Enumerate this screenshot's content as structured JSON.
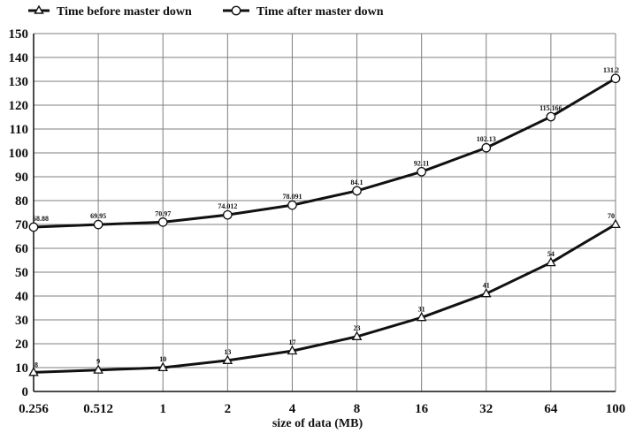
{
  "chart_data": {
    "type": "line",
    "title": "",
    "xlabel": "size of data (MB)",
    "ylabel": "",
    "categories": [
      "0.256",
      "0.512",
      "1",
      "2",
      "4",
      "8",
      "16",
      "32",
      "64",
      "100"
    ],
    "ylim": [
      0,
      150
    ],
    "y_ticks": [
      "0",
      "10",
      "20",
      "30",
      "40",
      "50",
      "60",
      "70",
      "80",
      "90",
      "100",
      "110",
      "120",
      "130",
      "140",
      "150"
    ],
    "grid": true,
    "legend_position": "top-left",
    "series": [
      {
        "name": "Time before master down",
        "marker": "triangle",
        "values": [
          8,
          9,
          10,
          13,
          17,
          23,
          31,
          41,
          54,
          70
        ],
        "labels": [
          "8",
          "9",
          "10",
          "13",
          "17",
          "23",
          "31",
          "41",
          "54",
          "70"
        ]
      },
      {
        "name": "Time after master down",
        "marker": "circle",
        "values": [
          68.88,
          69.95,
          70.97,
          74.012,
          78.091,
          84.1,
          92.11,
          102.13,
          115.166,
          131.2
        ],
        "labels": [
          "68.88",
          "69.95",
          "70.97",
          "74.012",
          "78.091",
          "84.1",
          "92.11",
          "102.13",
          "115.166",
          "131.2"
        ]
      }
    ]
  }
}
